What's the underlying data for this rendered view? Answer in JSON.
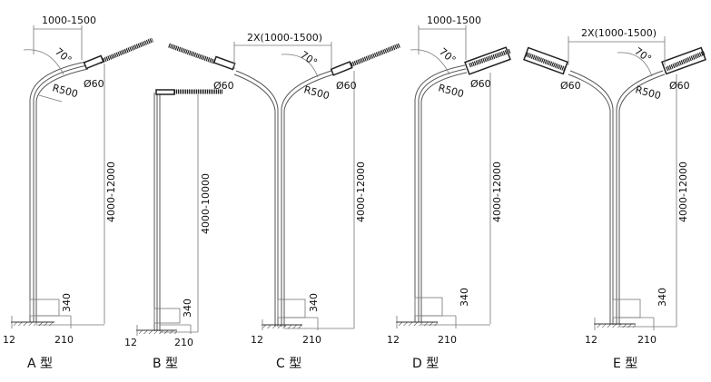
{
  "types": [
    {
      "caption": "A 型",
      "arm_length": "1000-1500",
      "angle": "70°",
      "radius": "R500",
      "diameter": "Ø60",
      "height": "4000-12000",
      "base_height": "340",
      "base_thickness": "12",
      "base_width": "210"
    },
    {
      "caption": "B 型",
      "height": "4000-10000",
      "base_height": "340",
      "base_thickness": "12",
      "base_width": "210"
    },
    {
      "caption": "C 型",
      "arm_length": "2X(1000-1500)",
      "angle": "70°",
      "radius": "R500",
      "diameter_left": "Ø60",
      "diameter_right": "Ø60",
      "height": "4000-12000",
      "base_height": "340",
      "base_thickness": "12",
      "base_width": "210"
    },
    {
      "caption": "D 型",
      "arm_length": "1000-1500",
      "angle": "70°",
      "radius": "R500",
      "diameter": "Ø60",
      "height": "4000-12000",
      "base_height": "340",
      "base_thickness": "12",
      "base_width": "210"
    },
    {
      "caption": "E 型",
      "arm_length": "2X(1000-1500)",
      "angle": "70°",
      "radius": "R500",
      "diameter_left": "Ø60",
      "diameter_right": "Ø60",
      "height": "4000-12000",
      "base_height": "340",
      "base_thickness": "12",
      "base_width": "210"
    }
  ]
}
